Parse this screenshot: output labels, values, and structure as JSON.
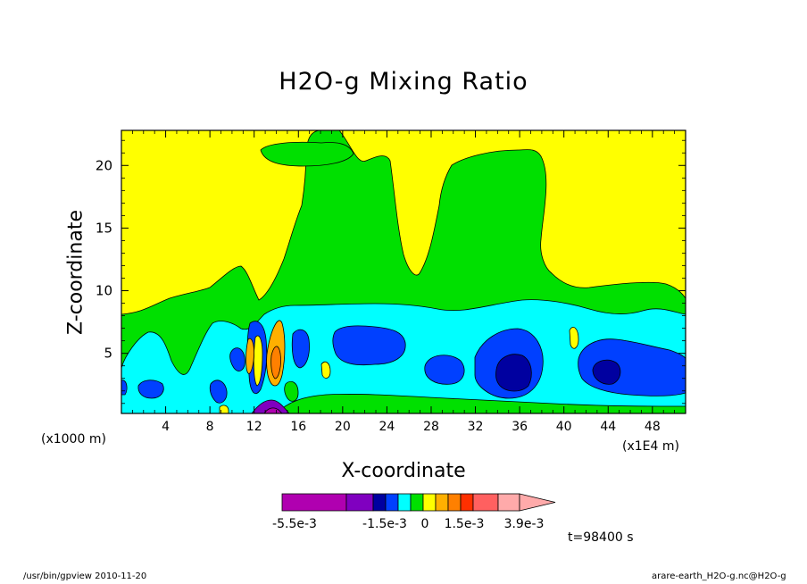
{
  "chart_data": {
    "type": "heatmap",
    "title": "H2O-g Mixing Ratio",
    "xlabel": "X-coordinate",
    "ylabel": "Z-coordinate",
    "x_unit_label": "(x1000 m)",
    "x_unit_label_right": "(x1E4 m)",
    "x_ticks": [
      4,
      8,
      12,
      16,
      20,
      24,
      28,
      32,
      36,
      40,
      44,
      48
    ],
    "y_ticks": [
      5,
      10,
      15,
      20
    ],
    "xlim": [
      0,
      51
    ],
    "ylim": [
      0.2,
      22.8
    ],
    "levels": [
      "-5.5e-3",
      "-1.5e-3",
      "0",
      "1.5e-3",
      "3.9e-3"
    ],
    "colorbar_colors": [
      "#b000b0",
      "#8000c0",
      "#0000a0",
      "#0040ff",
      "#00ffff",
      "#00e000",
      "#ffff00",
      "#ffb000",
      "#ff8000",
      "#ff3000",
      "#ff6060",
      "#ffaaaa"
    ],
    "time": "t=98400 s"
  },
  "footer": {
    "left": "/usr/bin/gpview   2010-11-20",
    "right": "arare-earth_H2O-g.nc@H2O-g"
  },
  "colors": {
    "background_field": "#ffff00",
    "mid_field": "#00e000",
    "low_field": "#00ffff",
    "core_field": "#0040ff",
    "deep_core": "#0000a0"
  }
}
